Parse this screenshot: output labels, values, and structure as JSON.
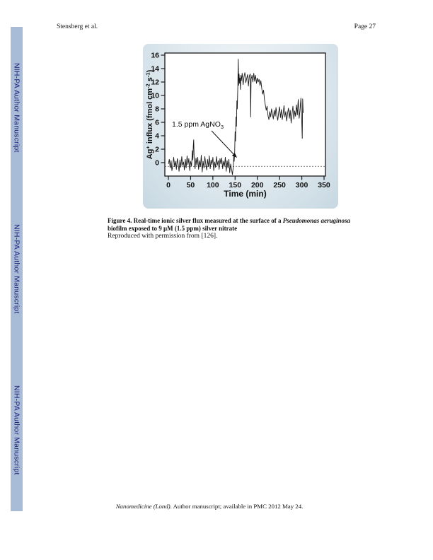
{
  "page": {
    "header_left": "Stensberg et al.",
    "header_right": "Page 27"
  },
  "sidebar": {
    "label": "NIH-PA Author Manuscript",
    "bar_color": "#a8bcd8",
    "text_color": "#1c1f78"
  },
  "caption": {
    "line1_bold": "Figure 4. Real-time ionic silver flux measured at the surface of a ",
    "species_italic": "Pseudomonas aeruginosa",
    "line2_bold": "biofilm exposed to 9 μM (1.5 ppm) silver nitrate",
    "note": "Reproduced with permission from [126]."
  },
  "footer": {
    "journal_italic": "Nanomedicine (Lond)",
    "rest": ". Author manuscript; available in PMC 2012 May 24."
  },
  "chart_data": {
    "type": "line",
    "title": "",
    "xlabel": "Time (min)",
    "ylabel": "Ag+ influx (fmol cm-2 s-1)",
    "ylabel_parts": {
      "p1": "Ag",
      "s1": "+",
      "p2": " influx (fmol cm",
      "s2": "-2",
      "p3": " s",
      "s3": "-1",
      "p4": ")"
    },
    "x_ticks": [
      0,
      50,
      100,
      150,
      200,
      250,
      300,
      350
    ],
    "y_ticks": [
      0,
      2,
      4,
      6,
      8,
      10,
      12,
      14,
      16
    ],
    "xlim": [
      0,
      350
    ],
    "ylim": [
      -2,
      16.3
    ],
    "grid": false,
    "legend": "none",
    "dashed_baseline": -0.55,
    "annotation": {
      "text": "1.5 ppm AgNO",
      "sub": "3"
    },
    "series": [
      {
        "name": "Ag+ influx",
        "points": [
          [
            0,
            -0.2
          ],
          [
            2,
            0.5
          ],
          [
            4,
            -0.8
          ],
          [
            6,
            0.3
          ],
          [
            8,
            -1.2
          ],
          [
            10,
            -0.3
          ],
          [
            12,
            0.8
          ],
          [
            14,
            -0.6
          ],
          [
            16,
            0.2
          ],
          [
            18,
            -1.0
          ],
          [
            20,
            0.6
          ],
          [
            22,
            -0.2
          ],
          [
            24,
            -1.3
          ],
          [
            26,
            0.4
          ],
          [
            28,
            -0.7
          ],
          [
            30,
            0.9
          ],
          [
            32,
            -0.4
          ],
          [
            34,
            0.1
          ],
          [
            36,
            -1.1
          ],
          [
            38,
            0.5
          ],
          [
            40,
            -0.8
          ],
          [
            42,
            1.0
          ],
          [
            44,
            -0.3
          ],
          [
            46,
            0.6
          ],
          [
            48,
            -1.2
          ],
          [
            50,
            0.2
          ],
          [
            52,
            -0.5
          ],
          [
            54,
            1.8
          ],
          [
            55,
            0.4
          ],
          [
            56,
            2.5
          ],
          [
            57,
            3.4
          ],
          [
            58,
            0.3
          ],
          [
            60,
            -0.9
          ],
          [
            62,
            0.7
          ],
          [
            64,
            -0.4
          ],
          [
            66,
            0.8
          ],
          [
            68,
            -1.0
          ],
          [
            70,
            0.3
          ],
          [
            72,
            -0.6
          ],
          [
            74,
            1.1
          ],
          [
            76,
            -1.4
          ],
          [
            78,
            0.2
          ],
          [
            80,
            -0.8
          ],
          [
            82,
            0.9
          ],
          [
            84,
            -0.2
          ],
          [
            86,
            -1.1
          ],
          [
            88,
            0.5
          ],
          [
            90,
            -0.6
          ],
          [
            92,
            1.0
          ],
          [
            94,
            -0.9
          ],
          [
            96,
            0.4
          ],
          [
            98,
            -0.3
          ],
          [
            100,
            0.8
          ],
          [
            102,
            -1.2
          ],
          [
            104,
            0.1
          ],
          [
            106,
            -0.7
          ],
          [
            108,
            0.9
          ],
          [
            110,
            -0.4
          ],
          [
            112,
            0.3
          ],
          [
            114,
            -1.0
          ],
          [
            116,
            0.6
          ],
          [
            118,
            -0.2
          ],
          [
            120,
            0.7
          ],
          [
            122,
            -0.9
          ],
          [
            124,
            0.2
          ],
          [
            126,
            -0.5
          ],
          [
            128,
            0.8
          ],
          [
            130,
            -1.3
          ],
          [
            132,
            0.3
          ],
          [
            134,
            -0.8
          ],
          [
            136,
            0.5
          ],
          [
            138,
            -1.5
          ],
          [
            140,
            -0.2
          ],
          [
            142,
            -1.0
          ],
          [
            144,
            -1.8
          ],
          [
            146,
            -0.5
          ],
          [
            147,
            0.9
          ],
          [
            148,
            0.2
          ],
          [
            149,
            1.6
          ],
          [
            150,
            4.6
          ],
          [
            151,
            3.2
          ],
          [
            152,
            6.8
          ],
          [
            153,
            5.4
          ],
          [
            154,
            9.2
          ],
          [
            155,
            8.0
          ],
          [
            156,
            11.2
          ],
          [
            157,
            15.4
          ],
          [
            158,
            11.5
          ],
          [
            159,
            13.2
          ],
          [
            160,
            11.8
          ],
          [
            161,
            12.6
          ],
          [
            162,
            10.9
          ],
          [
            163,
            13.0
          ],
          [
            164,
            12.2
          ],
          [
            166,
            13.3
          ],
          [
            168,
            11.6
          ],
          [
            170,
            12.8
          ],
          [
            172,
            13.4
          ],
          [
            174,
            11.9
          ],
          [
            176,
            12.5
          ],
          [
            178,
            13.1
          ],
          [
            180,
            11.4
          ],
          [
            182,
            12.9
          ],
          [
            184,
            13.2
          ],
          [
            185,
            6.8
          ],
          [
            186,
            12.4
          ],
          [
            188,
            13.0
          ],
          [
            190,
            12.0
          ],
          [
            192,
            13.3
          ],
          [
            194,
            12.1
          ],
          [
            196,
            13.0
          ],
          [
            198,
            11.8
          ],
          [
            200,
            12.6
          ],
          [
            202,
            12.0
          ],
          [
            204,
            12.4
          ],
          [
            206,
            11.5
          ],
          [
            208,
            12.2
          ],
          [
            210,
            11.0
          ],
          [
            212,
            10.2
          ],
          [
            214,
            10.8
          ],
          [
            216,
            9.4
          ],
          [
            218,
            8.6
          ],
          [
            220,
            7.8
          ],
          [
            222,
            8.4
          ],
          [
            224,
            7.0
          ],
          [
            226,
            6.4
          ],
          [
            228,
            7.6
          ],
          [
            230,
            6.8
          ],
          [
            232,
            8.0
          ],
          [
            234,
            7.2
          ],
          [
            236,
            6.5
          ],
          [
            238,
            7.8
          ],
          [
            240,
            6.9
          ],
          [
            242,
            8.2
          ],
          [
            244,
            7.0
          ],
          [
            246,
            6.3
          ],
          [
            248,
            7.5
          ],
          [
            250,
            8.3
          ],
          [
            252,
            6.7
          ],
          [
            254,
            7.9
          ],
          [
            256,
            6.4
          ],
          [
            258,
            7.3
          ],
          [
            260,
            8.5
          ],
          [
            262,
            6.8
          ],
          [
            264,
            7.6
          ],
          [
            266,
            6.2
          ],
          [
            268,
            7.4
          ],
          [
            270,
            8.1
          ],
          [
            272,
            6.6
          ],
          [
            274,
            7.8
          ],
          [
            276,
            5.9
          ],
          [
            278,
            7.2
          ],
          [
            280,
            8.4
          ],
          [
            282,
            6.5
          ],
          [
            284,
            7.7
          ],
          [
            286,
            6.9
          ],
          [
            288,
            8.6
          ],
          [
            290,
            7.1
          ],
          [
            292,
            9.4
          ],
          [
            294,
            6.6
          ],
          [
            296,
            7.9
          ],
          [
            298,
            9.6
          ],
          [
            300,
            5.8
          ],
          [
            301,
            3.6
          ],
          [
            302,
            9.5
          ],
          [
            303,
            7.4
          ]
        ]
      }
    ]
  }
}
